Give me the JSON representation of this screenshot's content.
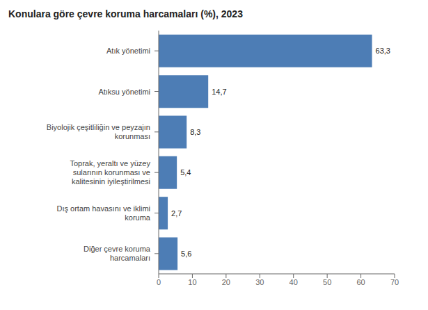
{
  "chart_data": {
    "type": "bar",
    "title": "Konulara göre çevre koruma harcamaları (%), 2023",
    "orientation": "horizontal",
    "categories": [
      "Diğer çevre koruma\nharcamaları",
      "Dış ortam havasını ve iklimi\nkoruma",
      "Toprak, yeraltı ve yüzey\nsularının korunması ve\nkalitesinin iyileştirilmesi",
      "Biyolojik çeşitliliğin ve peyzajın\nkorunması",
      "Atıksu yönetimi",
      "Atık yönetimi"
    ],
    "values": [
      5.6,
      2.7,
      5.4,
      8.3,
      14.7,
      63.3
    ],
    "value_labels": [
      "5,6",
      "2,7",
      "5,4",
      "8,3",
      "14,7",
      "63,3"
    ],
    "data_labels": true,
    "color": "#4d7db5",
    "xlim": [
      0,
      70
    ],
    "xticks": [
      0,
      10,
      20,
      30,
      40,
      50,
      60,
      70
    ],
    "grid": false
  }
}
